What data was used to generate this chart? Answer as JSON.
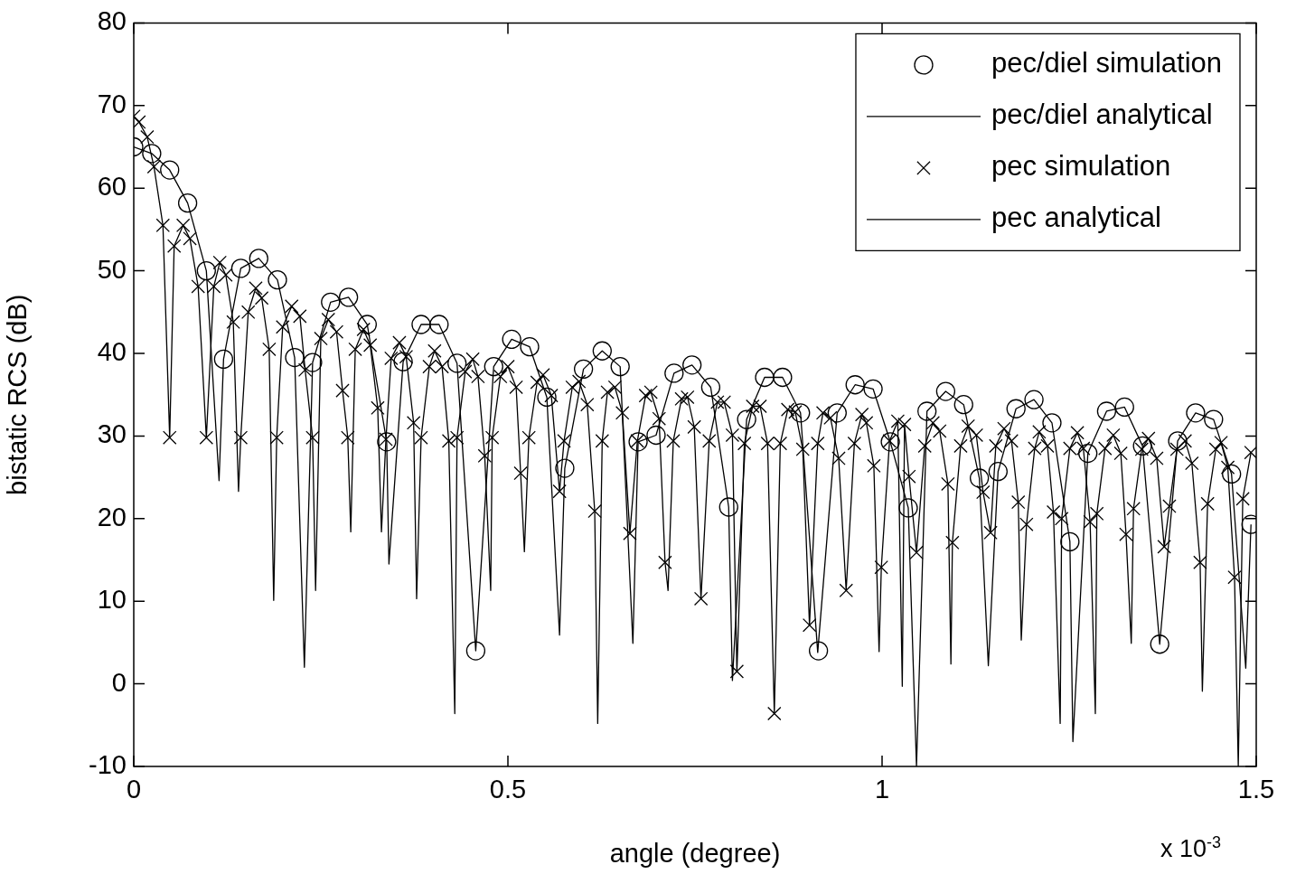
{
  "chart_data": {
    "type": "scatter",
    "xlabel": "angle (degree)",
    "ylabel": "bistatic RCS (dB)",
    "annotations": [
      "x 10$^{-3}$"
    ],
    "xlim": [
      0,
      1.5
    ],
    "xticks": [
      0,
      0.5,
      1,
      1.5
    ],
    "ylim": [
      -10,
      80
    ],
    "yticks": [
      -10,
      0,
      10,
      20,
      30,
      40,
      50,
      60,
      70,
      80
    ],
    "grid": false,
    "legend": "top right",
    "series": [
      {
        "name": "pec/diel simulation",
        "type": "scatter",
        "marker": "circle",
        "color": "#000000",
        "x": [
          0,
          0.024,
          0.048,
          0.072,
          0.097,
          0.12,
          0.143,
          0.167,
          0.192,
          0.215,
          0.239,
          0.263,
          0.287,
          0.312,
          0.338,
          0.36,
          0.384,
          0.408,
          0.432,
          0.457,
          0.481,
          0.505,
          0.529,
          0.552,
          0.576,
          0.601,
          0.626,
          0.65,
          0.674,
          0.698,
          0.722,
          0.746,
          0.771,
          0.795,
          0.819,
          0.843,
          0.867,
          0.891,
          0.915,
          0.94,
          0.964,
          0.988,
          1.011,
          1.035,
          1.06,
          1.085,
          1.109,
          1.13,
          1.155,
          1.179,
          1.203,
          1.227,
          1.251,
          1.275,
          1.3,
          1.324,
          1.348,
          1.371,
          1.395,
          1.419,
          1.443,
          1.467,
          1.493
        ],
        "values": [
          65.0,
          64.2,
          62.2,
          58.2,
          50.0,
          39.3,
          50.3,
          51.5,
          48.9,
          39.5,
          38.9,
          46.2,
          46.8,
          43.5,
          29.3,
          39.0,
          43.5,
          43.5,
          38.8,
          4.0,
          38.4,
          41.7,
          40.8,
          34.7,
          26.1,
          38.1,
          40.3,
          38.4,
          29.3,
          30.1,
          37.6,
          38.6,
          35.9,
          21.4,
          32.0,
          37.1,
          37.1,
          32.8,
          4.0,
          32.8,
          36.2,
          35.7,
          29.3,
          21.3,
          33.0,
          35.4,
          33.8,
          24.9,
          25.7,
          33.3,
          34.4,
          31.6,
          17.2,
          27.9,
          33.0,
          33.5,
          28.8,
          4.8,
          29.4,
          32.8,
          32.0,
          25.4,
          19.3
        ]
      },
      {
        "name": "pec/diel analytical",
        "type": "line",
        "marker": "none",
        "line_style": "solid",
        "color": "#000000",
        "x": [
          0,
          0.024,
          0.048,
          0.072,
          0.097,
          0.114,
          0.12,
          0.143,
          0.167,
          0.192,
          0.215,
          0.228,
          0.239,
          0.263,
          0.287,
          0.312,
          0.338,
          0.341,
          0.36,
          0.384,
          0.408,
          0.432,
          0.457,
          0.481,
          0.505,
          0.529,
          0.552,
          0.569,
          0.576,
          0.601,
          0.626,
          0.65,
          0.667,
          0.674,
          0.698,
          0.722,
          0.746,
          0.771,
          0.795,
          0.8,
          0.819,
          0.843,
          0.867,
          0.891,
          0.914,
          0.94,
          0.964,
          0.988,
          1.011,
          1.035,
          1.046,
          1.06,
          1.085,
          1.109,
          1.13,
          1.142,
          1.155,
          1.179,
          1.203,
          1.227,
          1.251,
          1.255,
          1.275,
          1.3,
          1.324,
          1.348,
          1.371,
          1.395,
          1.419,
          1.443,
          1.467,
          1.486,
          1.493
        ],
        "values": [
          65.0,
          64.2,
          62.2,
          58.2,
          50.0,
          24.6,
          39.3,
          50.3,
          51.5,
          48.9,
          39.5,
          2.0,
          38.9,
          46.2,
          46.8,
          43.5,
          29.3,
          14.5,
          39.0,
          43.5,
          43.5,
          38.8,
          4.0,
          38.4,
          41.7,
          40.8,
          34.7,
          5.9,
          26.1,
          38.1,
          40.3,
          38.4,
          4.9,
          29.3,
          30.1,
          37.6,
          38.6,
          35.9,
          21.4,
          0.4,
          32.0,
          37.1,
          37.1,
          32.8,
          3.8,
          32.8,
          36.2,
          35.7,
          29.3,
          21.3,
          -10,
          33.0,
          35.4,
          33.8,
          24.9,
          2.2,
          25.7,
          33.3,
          34.4,
          31.6,
          17.2,
          -7.0,
          27.9,
          33.0,
          33.5,
          28.8,
          4.8,
          29.4,
          32.8,
          32.0,
          25.4,
          1.9,
          19.3
        ]
      },
      {
        "name": "pec simulation",
        "type": "scatter",
        "marker": "cross",
        "color": "#000000",
        "x": [
          0,
          0.007,
          0.018,
          0.027,
          0.039,
          0.048,
          0.054,
          0.066,
          0.075,
          0.086,
          0.097,
          0.107,
          0.115,
          0.123,
          0.133,
          0.143,
          0.153,
          0.163,
          0.171,
          0.181,
          0.191,
          0.199,
          0.211,
          0.222,
          0.229,
          0.239,
          0.25,
          0.26,
          0.271,
          0.279,
          0.286,
          0.296,
          0.307,
          0.316,
          0.326,
          0.337,
          0.344,
          0.355,
          0.364,
          0.374,
          0.384,
          0.395,
          0.402,
          0.412,
          0.421,
          0.432,
          0.443,
          0.453,
          0.46,
          0.469,
          0.479,
          0.49,
          0.5,
          0.511,
          0.517,
          0.528,
          0.539,
          0.547,
          0.558,
          0.569,
          0.575,
          0.586,
          0.595,
          0.606,
          0.616,
          0.626,
          0.633,
          0.643,
          0.653,
          0.663,
          0.673,
          0.684,
          0.691,
          0.702,
          0.71,
          0.721,
          0.732,
          0.74,
          0.749,
          0.758,
          0.769,
          0.78,
          0.789,
          0.8,
          0.806,
          0.816,
          0.827,
          0.837,
          0.847,
          0.856,
          0.864,
          0.874,
          0.884,
          0.894,
          0.903,
          0.914,
          0.921,
          0.931,
          0.942,
          0.952,
          0.963,
          0.973,
          0.979,
          0.989,
          0.999,
          1.01,
          1.021,
          1.03,
          1.036,
          1.046,
          1.057,
          1.068,
          1.077,
          1.088,
          1.094,
          1.105,
          1.115,
          1.126,
          1.135,
          1.145,
          1.152,
          1.163,
          1.173,
          1.182,
          1.193,
          1.204,
          1.21,
          1.221,
          1.229,
          1.24,
          1.251,
          1.261,
          1.269,
          1.278,
          1.287,
          1.298,
          1.309,
          1.319,
          1.326,
          1.336,
          1.347,
          1.356,
          1.367,
          1.377,
          1.384,
          1.394,
          1.405,
          1.414,
          1.425,
          1.435,
          1.446,
          1.453,
          1.462,
          1.471,
          1.482,
          1.493
        ],
        "values": [
          68.7,
          68.0,
          66.2,
          62.6,
          55.5,
          29.8,
          53.0,
          55.5,
          53.9,
          48.1,
          29.8,
          48.1,
          51.0,
          49.5,
          43.8,
          29.8,
          45.0,
          47.9,
          46.7,
          40.5,
          29.8,
          43.2,
          45.7,
          44.5,
          38.0,
          29.8,
          41.8,
          44.1,
          42.6,
          35.5,
          29.8,
          40.5,
          42.9,
          41.0,
          33.4,
          29.6,
          39.4,
          41.3,
          39.6,
          31.6,
          29.8,
          38.4,
          40.3,
          38.4,
          29.4,
          29.8,
          37.8,
          39.3,
          37.2,
          27.6,
          29.8,
          37.2,
          38.4,
          35.9,
          25.5,
          29.8,
          36.5,
          37.4,
          34.9,
          23.3,
          29.4,
          35.9,
          36.6,
          33.8,
          20.9,
          29.4,
          35.3,
          35.9,
          32.8,
          18.2,
          29.4,
          34.9,
          35.3,
          32.1,
          14.7,
          29.4,
          34.5,
          34.7,
          31.1,
          10.3,
          29.4,
          34.1,
          34.1,
          30.1,
          1.5,
          29.1,
          33.6,
          33.6,
          29.1,
          -3.6,
          29.1,
          33.2,
          32.9,
          28.4,
          7.1,
          29.1,
          32.8,
          32.2,
          27.3,
          11.3,
          29.1,
          32.6,
          31.6,
          26.4,
          14.1,
          29.4,
          31.8,
          31.4,
          25.1,
          15.9,
          28.8,
          31.6,
          30.6,
          24.2,
          17.1,
          28.8,
          31.2,
          30.1,
          23.2,
          18.3,
          28.8,
          30.9,
          29.4,
          22.0,
          19.3,
          28.5,
          30.5,
          28.8,
          20.8,
          20.0,
          28.5,
          30.4,
          28.5,
          19.6,
          20.6,
          28.5,
          30.1,
          27.9,
          18.1,
          21.2,
          28.4,
          29.7,
          27.3,
          16.6,
          21.5,
          28.4,
          29.4,
          26.7,
          14.7,
          21.8,
          28.4,
          29.2,
          26.2,
          12.9,
          22.4,
          28.0
        ]
      },
      {
        "name": "pec analytical",
        "type": "line",
        "marker": "none",
        "line_style": "solid",
        "color": "#000000",
        "x": [
          0,
          0.007,
          0.018,
          0.027,
          0.039,
          0.048,
          0.054,
          0.066,
          0.075,
          0.086,
          0.097,
          0.107,
          0.115,
          0.123,
          0.133,
          0.14,
          0.143,
          0.153,
          0.163,
          0.171,
          0.181,
          0.187,
          0.191,
          0.199,
          0.211,
          0.222,
          0.229,
          0.239,
          0.243,
          0.25,
          0.26,
          0.271,
          0.279,
          0.286,
          0.29,
          0.296,
          0.307,
          0.316,
          0.326,
          0.331,
          0.337,
          0.344,
          0.355,
          0.364,
          0.374,
          0.378,
          0.384,
          0.395,
          0.402,
          0.412,
          0.421,
          0.429,
          0.432,
          0.443,
          0.453,
          0.46,
          0.469,
          0.477,
          0.479,
          0.49,
          0.5,
          0.511,
          0.517,
          0.522,
          0.528,
          0.539,
          0.547,
          0.558,
          0.569,
          0.575,
          0.586,
          0.595,
          0.606,
          0.616,
          0.62,
          0.626,
          0.633,
          0.643,
          0.653,
          0.663,
          0.673,
          0.684,
          0.691,
          0.702,
          0.71,
          0.714,
          0.721,
          0.732,
          0.74,
          0.749,
          0.758,
          0.769,
          0.78,
          0.789,
          0.8,
          0.806,
          0.816,
          0.827,
          0.837,
          0.847,
          0.856,
          0.864,
          0.874,
          0.884,
          0.894,
          0.903,
          0.914,
          0.921,
          0.931,
          0.942,
          0.952,
          0.963,
          0.973,
          0.979,
          0.989,
          0.996,
          0.999,
          1.01,
          1.021,
          1.027,
          1.03,
          1.036,
          1.046,
          1.057,
          1.068,
          1.077,
          1.088,
          1.092,
          1.094,
          1.105,
          1.115,
          1.126,
          1.135,
          1.145,
          1.152,
          1.163,
          1.173,
          1.182,
          1.186,
          1.193,
          1.204,
          1.21,
          1.221,
          1.229,
          1.238,
          1.24,
          1.251,
          1.261,
          1.269,
          1.278,
          1.285,
          1.287,
          1.298,
          1.309,
          1.319,
          1.326,
          1.333,
          1.336,
          1.347,
          1.356,
          1.367,
          1.377,
          1.384,
          1.394,
          1.405,
          1.414,
          1.425,
          1.428,
          1.435,
          1.446,
          1.453,
          1.462,
          1.471,
          1.476,
          1.482,
          1.493
        ],
        "values": [
          68.7,
          68.0,
          66.2,
          62.6,
          55.5,
          29.8,
          53.0,
          55.5,
          53.9,
          48.1,
          29.8,
          48.1,
          51.0,
          49.5,
          43.8,
          23.3,
          29.8,
          45.0,
          47.9,
          46.7,
          40.5,
          10.1,
          29.8,
          43.2,
          45.7,
          44.5,
          38.0,
          29.8,
          11.3,
          41.8,
          44.1,
          42.6,
          35.5,
          29.8,
          18.4,
          40.5,
          42.9,
          41.0,
          33.4,
          18.4,
          29.6,
          39.4,
          41.3,
          39.6,
          31.6,
          10.3,
          29.8,
          38.4,
          40.3,
          38.4,
          29.4,
          -3.6,
          29.8,
          37.8,
          39.3,
          37.2,
          27.6,
          11.3,
          29.8,
          37.2,
          38.4,
          35.9,
          25.5,
          16.0,
          29.8,
          36.5,
          37.4,
          34.9,
          23.3,
          29.4,
          35.9,
          36.6,
          33.8,
          20.9,
          -4.8,
          29.4,
          35.3,
          35.9,
          32.8,
          18.2,
          29.4,
          34.9,
          35.3,
          32.1,
          14.7,
          11.3,
          29.4,
          34.5,
          34.7,
          31.1,
          10.3,
          29.4,
          34.1,
          34.1,
          30.1,
          1.5,
          29.1,
          33.6,
          33.6,
          29.1,
          -3.6,
          29.1,
          33.2,
          32.9,
          28.4,
          7.1,
          29.1,
          32.8,
          32.2,
          27.3,
          11.3,
          29.1,
          32.6,
          31.6,
          26.4,
          3.9,
          14.1,
          29.4,
          31.8,
          -0.3,
          31.4,
          25.1,
          15.9,
          28.8,
          31.6,
          30.6,
          24.2,
          2.4,
          17.1,
          28.8,
          31.2,
          30.1,
          23.2,
          18.3,
          28.8,
          30.9,
          29.4,
          22.0,
          5.3,
          19.3,
          28.5,
          30.5,
          28.8,
          20.8,
          -4.8,
          20.0,
          28.5,
          30.4,
          28.5,
          19.6,
          -3.6,
          20.6,
          28.5,
          30.1,
          27.9,
          18.1,
          4.9,
          21.2,
          28.4,
          29.7,
          27.3,
          16.6,
          21.5,
          28.4,
          29.4,
          26.7,
          14.7,
          -0.9,
          21.8,
          28.4,
          29.2,
          26.2,
          12.9,
          -10,
          22.4,
          28.0
        ]
      }
    ]
  }
}
